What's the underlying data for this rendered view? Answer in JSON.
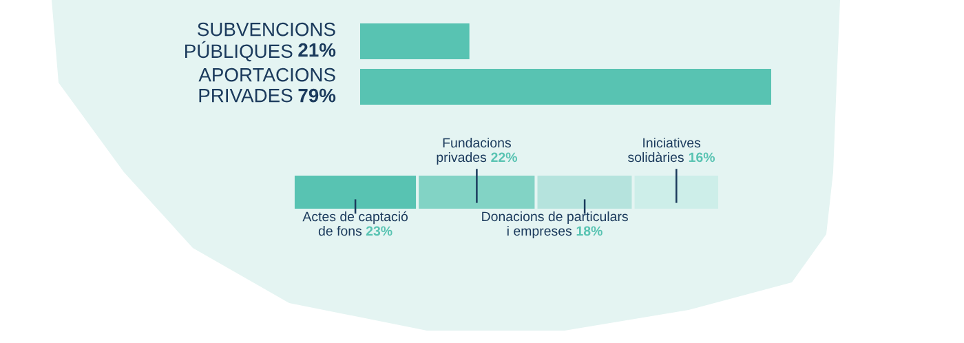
{
  "chart_data": [
    {
      "type": "bar",
      "orientation": "horizontal",
      "categories": [
        "SUBVENCIONS\nPÚBLIQUES",
        "APORTACIONS\nPRIVADES"
      ],
      "values": [
        21,
        79
      ],
      "value_labels": [
        "21%",
        "79%"
      ],
      "color": "#58c3b2",
      "xlim": [
        0,
        79
      ],
      "tick_labels": false
    },
    {
      "type": "bar",
      "orientation": "horizontal",
      "stacked": true,
      "categories": [
        null
      ],
      "xlim": [
        0,
        79
      ],
      "tick_labels": false,
      "series": [
        {
          "name": "Actes de captació\nde fons",
          "color": "#58c3b2",
          "values": [
            23
          ],
          "value_labels": [
            "23%"
          ]
        },
        {
          "name": "Fundacions\nprivades",
          "color": "#82d3c5",
          "values": [
            22
          ],
          "value_labels": [
            "22%"
          ]
        },
        {
          "name": "Donacions de particulars\ni empreses",
          "color": "#b5e3dd",
          "values": [
            18
          ],
          "value_labels": [
            "18%"
          ]
        },
        {
          "name": "Iniciatives\nsolidàries",
          "color": "#cdeee9",
          "values": [
            16
          ],
          "value_labels": [
            "16%"
          ]
        }
      ]
    }
  ]
}
